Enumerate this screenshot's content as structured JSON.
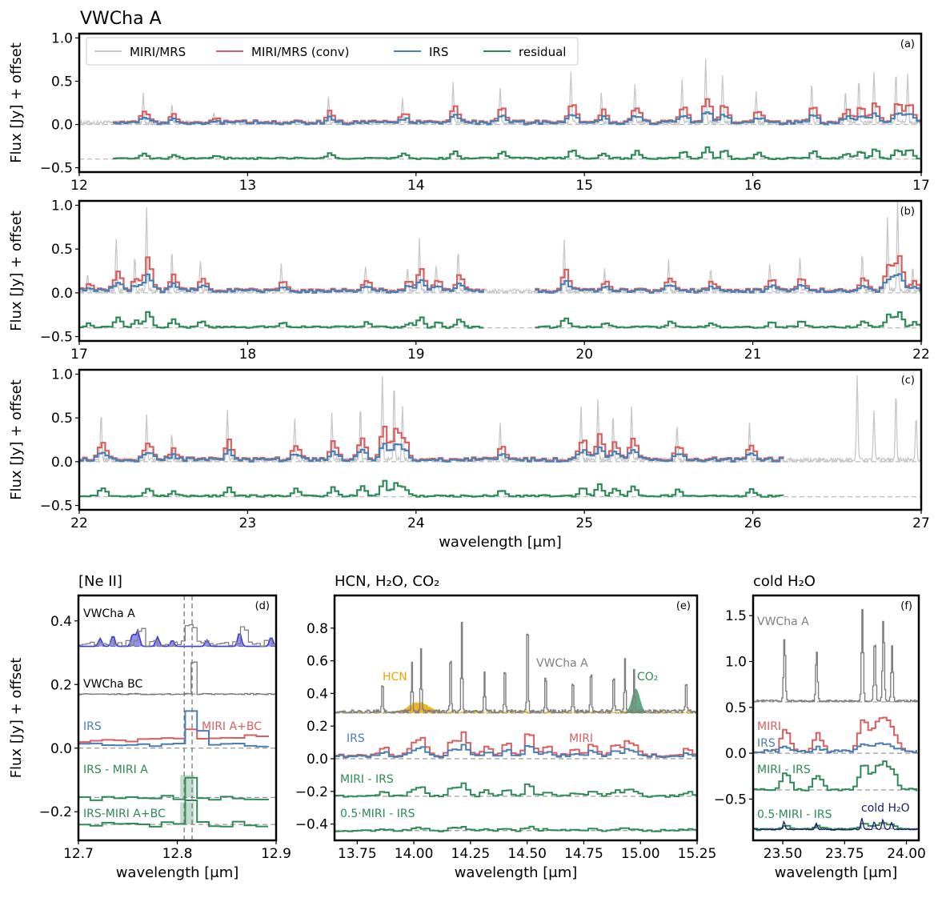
{
  "figure": {
    "title": "VWCha A",
    "colors": {
      "miri": "#c8c8c8",
      "miri_conv": "#d95f5f",
      "irs": "#4a7fb5",
      "residual": "#2e8b57",
      "model_blue": "#3b3bdd",
      "hcn": "#f0a500",
      "co2": "#2e8b57",
      "cold_h2o": "#1a1a6e",
      "gray": "#808080"
    }
  },
  "legend": {
    "items": [
      {
        "label": "MIRI/MRS",
        "color": "#c8c8c8"
      },
      {
        "label": "MIRI/MRS (conv)",
        "color": "#d95f5f"
      },
      {
        "label": "IRS",
        "color": "#4a7fb5"
      },
      {
        "label": "residual",
        "color": "#2e8b57"
      }
    ]
  },
  "chart_data": [
    {
      "id": "a",
      "type": "line",
      "panel_label": "(a)",
      "xlim": [
        12,
        17
      ],
      "ylim": [
        -0.55,
        1.05
      ],
      "xticks": [
        "12",
        "13",
        "14",
        "15",
        "16",
        "17"
      ],
      "yticks": [
        "-0.5",
        "0.0",
        "0.5",
        "1.0"
      ],
      "ylabel": "Flux [Jy] + offset",
      "xlabel": "",
      "residual_offset": -0.4,
      "irs_range": [
        12.2,
        17
      ],
      "peaks": [
        [
          12.38,
          0.32
        ],
        [
          12.55,
          0.22
        ],
        [
          12.8,
          0.12
        ],
        [
          13.48,
          0.3
        ],
        [
          13.92,
          0.28
        ],
        [
          14.22,
          0.45
        ],
        [
          14.5,
          0.42
        ],
        [
          14.92,
          0.6
        ],
        [
          15.1,
          0.35
        ],
        [
          15.3,
          0.45
        ],
        [
          15.58,
          0.48
        ],
        [
          15.72,
          0.72
        ],
        [
          15.82,
          0.55
        ],
        [
          16.02,
          0.38
        ],
        [
          16.35,
          0.45
        ],
        [
          16.55,
          0.35
        ],
        [
          16.63,
          0.5
        ],
        [
          16.72,
          0.6
        ],
        [
          16.85,
          0.58
        ],
        [
          16.92,
          0.55
        ]
      ]
    },
    {
      "id": "b",
      "type": "line",
      "panel_label": "(b)",
      "xlim": [
        17,
        22
      ],
      "ylim": [
        -0.55,
        1.05
      ],
      "xticks": [
        "17",
        "18",
        "19",
        "20",
        "21",
        "22"
      ],
      "yticks": [
        "-0.5",
        "0.0",
        "0.5",
        "1.0"
      ],
      "ylabel": "Flux [Jy] + offset",
      "xlabel": "",
      "residual_offset": -0.4,
      "gap": [
        19.4,
        19.7
      ],
      "peaks": [
        [
          17.05,
          0.2
        ],
        [
          17.22,
          0.6
        ],
        [
          17.33,
          0.38
        ],
        [
          17.4,
          0.95
        ],
        [
          17.55,
          0.45
        ],
        [
          17.72,
          0.35
        ],
        [
          18.2,
          0.3
        ],
        [
          18.7,
          0.3
        ],
        [
          18.95,
          0.25
        ],
        [
          19.02,
          0.6
        ],
        [
          19.12,
          0.3
        ],
        [
          19.25,
          0.45
        ],
        [
          19.88,
          0.6
        ],
        [
          20.12,
          0.25
        ],
        [
          20.5,
          0.35
        ],
        [
          20.75,
          0.25
        ],
        [
          21.1,
          0.32
        ],
        [
          21.28,
          0.35
        ],
        [
          21.65,
          0.42
        ],
        [
          21.8,
          0.82
        ],
        [
          21.86,
          1.0
        ],
        [
          21.95,
          0.3
        ]
      ]
    },
    {
      "id": "c",
      "type": "line",
      "panel_label": "(c)",
      "xlim": [
        22,
        27
      ],
      "ylim": [
        -0.55,
        1.05
      ],
      "xticks": [
        "22",
        "23",
        "24",
        "25",
        "26",
        "27"
      ],
      "yticks": [
        "-0.5",
        "0.0",
        "0.5",
        "1.0"
      ],
      "ylabel": "Flux [Jy] + offset",
      "xlabel": "wavelength [μm]",
      "residual_offset": -0.4,
      "irs_range": [
        22,
        26.2
      ],
      "peaks": [
        [
          22.13,
          0.52
        ],
        [
          22.4,
          0.5
        ],
        [
          22.55,
          0.3
        ],
        [
          22.88,
          0.55
        ],
        [
          23.28,
          0.45
        ],
        [
          23.5,
          0.55
        ],
        [
          23.67,
          0.6
        ],
        [
          23.8,
          0.95
        ],
        [
          23.87,
          0.85
        ],
        [
          23.92,
          0.6
        ],
        [
          24.5,
          0.4
        ],
        [
          24.98,
          0.6
        ],
        [
          25.08,
          0.7
        ],
        [
          25.17,
          0.5
        ],
        [
          25.28,
          0.6
        ],
        [
          25.55,
          0.4
        ],
        [
          25.98,
          0.4
        ],
        [
          26.62,
          0.95
        ],
        [
          26.72,
          0.55
        ],
        [
          26.85,
          0.75
        ],
        [
          26.97,
          0.5
        ]
      ]
    },
    {
      "id": "d",
      "type": "line",
      "panel_label": "(d)",
      "title": "[Ne II]",
      "xlim": [
        12.7,
        12.9
      ],
      "ylim": [
        -0.29,
        0.48
      ],
      "xticks": [
        "12.7",
        "12.8",
        "12.9"
      ],
      "yticks": [
        "-0.2",
        "0.0",
        "0.2",
        "0.4"
      ],
      "ylabel": "Flux [Jy] + offset",
      "xlabel": "wavelength [μm]",
      "vlines": [
        12.807,
        12.815
      ],
      "annotations": [
        "VWCha A",
        "VWCha BC",
        "IRS",
        "MIRI A+BC",
        "IRS - MIRI A",
        "IRS-MIRI A+BC"
      ]
    },
    {
      "id": "e",
      "type": "line",
      "panel_label": "(e)",
      "title": "HCN, H₂O, CO₂",
      "xlim": [
        13.65,
        15.25
      ],
      "ylim": [
        -0.5,
        1.0
      ],
      "xticks": [
        "13.75",
        "14.00",
        "14.25",
        "14.50",
        "14.75",
        "15.00",
        "15.25"
      ],
      "yticks": [
        "-0.4",
        "-0.2",
        "0.0",
        "0.2",
        "0.4",
        "0.6",
        "0.8"
      ],
      "xlabel": "wavelength [μm]",
      "annotations": [
        "HCN",
        "VWCha A",
        "CO₂",
        "IRS",
        "MIRI",
        "MIRI - IRS",
        "0.5·MIRI - IRS"
      ]
    },
    {
      "id": "f",
      "type": "line",
      "panel_label": "(f)",
      "title": "cold H₂O",
      "xlim": [
        23.38,
        24.05
      ],
      "ylim": [
        -0.95,
        1.72
      ],
      "xticks": [
        "23.50",
        "23.75",
        "24.00"
      ],
      "yticks": [
        "-0.5",
        "0.0",
        "0.5",
        "1.0",
        "1.5"
      ],
      "xlabel": "wavelength [μm]",
      "annotations": [
        "VWCha A",
        "MIRI",
        "IRS",
        "MIRI - IRS",
        "0.5·MIRI - IRS",
        "cold H₂O"
      ]
    }
  ]
}
